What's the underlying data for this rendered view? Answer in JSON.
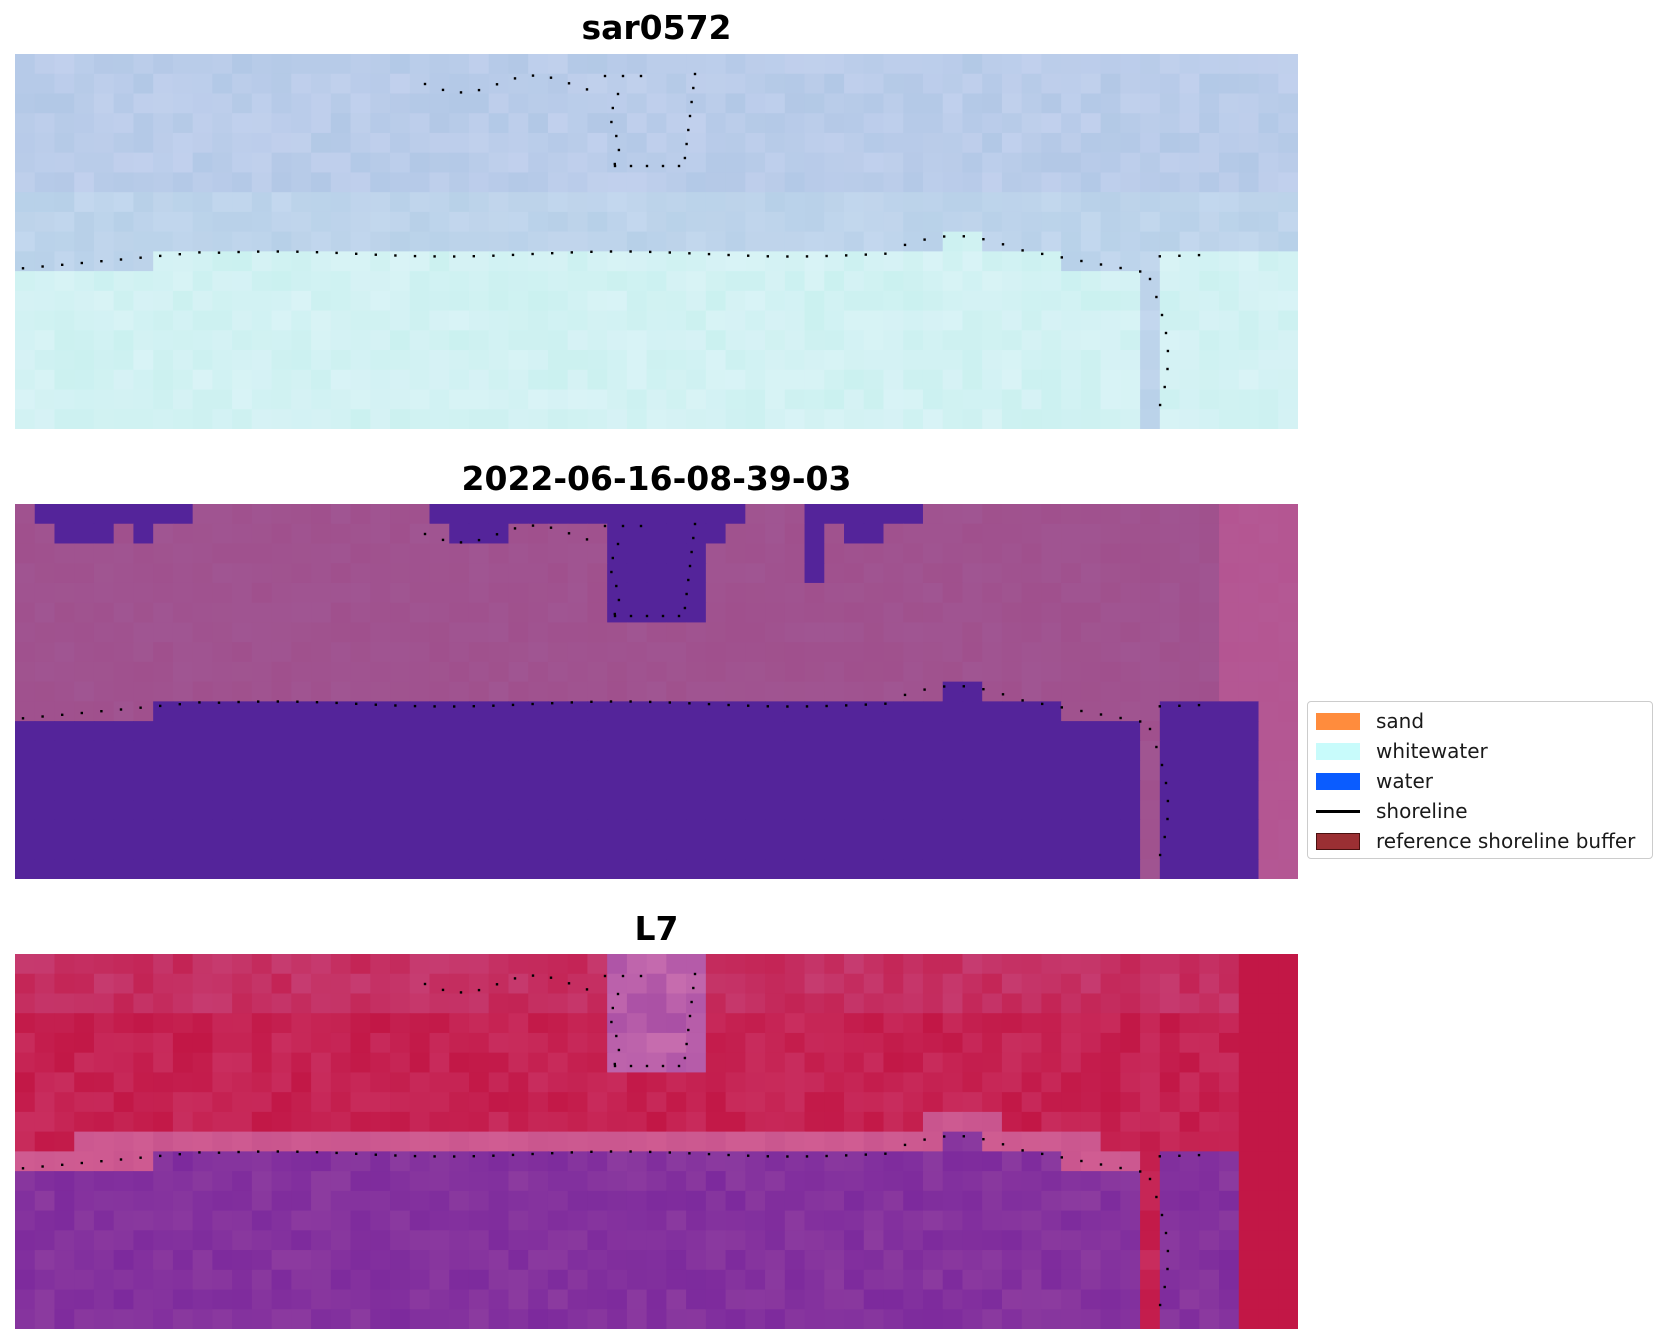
{
  "panels": [
    {
      "title": "sar0572",
      "style": "sar"
    },
    {
      "title": "2022-06-16-08-39-03",
      "style": "classified"
    },
    {
      "title": "L7",
      "style": "l7"
    }
  ],
  "legend": {
    "items": [
      {
        "label": "sand",
        "color": "#ff8c3d",
        "kind": "patch"
      },
      {
        "label": "whitewater",
        "color": "#c8fbfb",
        "kind": "patch"
      },
      {
        "label": "water",
        "color": "#0a5cff",
        "kind": "patch"
      },
      {
        "label": "shoreline",
        "color": "#000000",
        "kind": "line"
      },
      {
        "label": "reference shoreline buffer",
        "color": "#9b2f33",
        "kind": "patch"
      }
    ]
  },
  "colors": {
    "sar_blue": "#b2c8e6",
    "sar_cyan": "#cbf1f0",
    "classified_background": "#a05592",
    "classified_water": "#54249a",
    "l7_red": "#c21746",
    "l7_pink": "#c9558e",
    "l7_purple": "#7d2a9d"
  }
}
